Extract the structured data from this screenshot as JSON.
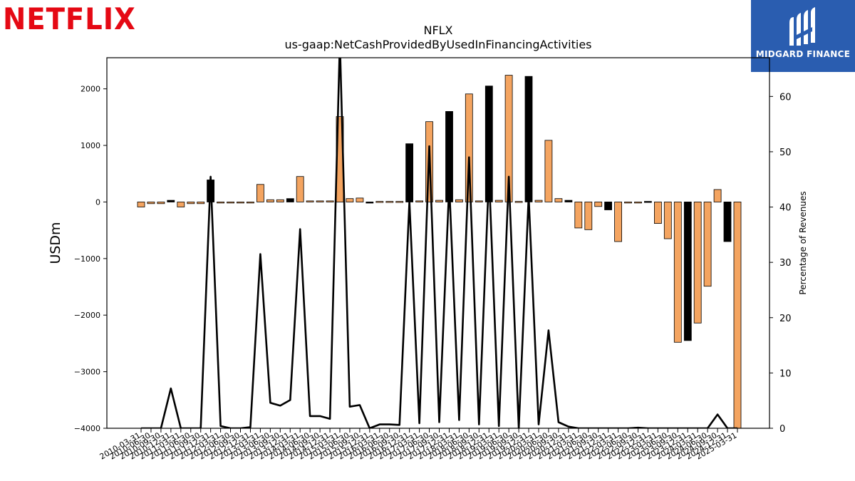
{
  "brand": {
    "company_logo_text": "NETFLIX",
    "publisher_logo_text": "MIDGARD FINANCE"
  },
  "colors": {
    "bar_orange": "#f4a460",
    "bar_black": "#000000",
    "line": "#000000",
    "netflix_red": "#e50914",
    "midgard_blue": "#2a5db0"
  },
  "chart_data": {
    "type": "bar",
    "title": "NFLX",
    "subtitle": "us-gaap:NetCashProvidedByUsedInFinancingActivities",
    "ylabel": "USDm",
    "y2label": "Percentage of Revenues",
    "ylim": [
      -4000,
      2550
    ],
    "y2lim": [
      0,
      67
    ],
    "yticks": [
      2000,
      1000,
      0,
      -1000,
      -2000,
      -3000,
      -4000
    ],
    "y2ticks": [
      60,
      50,
      40,
      30,
      20,
      10,
      0
    ],
    "grid": false,
    "categories": [
      "2010-03-31",
      "2010-06-30",
      "2010-09-30",
      "2010-12-31",
      "2011-03-31",
      "2011-06-30",
      "2011-09-30",
      "2011-12-31",
      "2012-03-31",
      "2012-06-30",
      "2012-09-30",
      "2012-12-31",
      "2013-03-31",
      "2013-06-30",
      "2013-09-30",
      "2013-12-31",
      "2014-03-31",
      "2014-06-30",
      "2014-09-30",
      "2014-12-31",
      "2015-03-31",
      "2015-06-30",
      "2015-09-30",
      "2015-12-31",
      "2016-03-31",
      "2016-06-30",
      "2016-09-30",
      "2016-12-31",
      "2017-03-31",
      "2017-06-30",
      "2017-09-30",
      "2017-12-31",
      "2018-03-31",
      "2018-06-30",
      "2018-09-30",
      "2018-12-31",
      "2019-03-31",
      "2019-06-30",
      "2019-09-30",
      "2019-12-31",
      "2020-03-31",
      "2020-06-30",
      "2020-09-30",
      "2020-12-31",
      "2021-03-31",
      "2021-06-30",
      "2021-09-30",
      "2021-12-31",
      "2022-03-31",
      "2022-06-30",
      "2022-09-30",
      "2022-12-31",
      "2023-03-31",
      "2023-06-30",
      "2023-09-30",
      "2023-12-31",
      "2024-03-31",
      "2024-06-30",
      "2024-09-30",
      "2024-12-31",
      "2025-03-31"
    ],
    "visible_tick_labels": [
      "2010-03-31",
      "2010-06-30",
      "2010-09-30",
      "2010-12-31",
      "2011-03-31",
      "2011-06-30",
      "2011-09-30",
      "2011-12-31",
      "2012-03-31",
      "2012-06-30",
      "2012-09-30",
      "2012-12-31",
      "2013-03-31",
      "2013-06-30",
      "2013-09-30",
      "2013-12-31",
      "2014-03-31",
      "2014-06-30",
      "2014-09-30",
      "2014-12-31",
      "2015-03-31",
      "2015-06-30",
      "2015-09-30",
      "2015-12-31",
      "2016-03-31",
      "2016-06-30",
      "2016-09-30",
      "2016-12-31",
      "2017-03-31",
      "2017-06-30",
      "2017-09-30",
      "2017-12-31",
      "2018-03-31",
      "2018-06-30",
      "2018-09-30",
      "2018-12-31",
      "2019-03-31",
      "2019-06-30",
      "2019-09-30",
      "2019-12-31",
      "2020-03-31",
      "2020-06-30",
      "2020-09-30",
      "2020-12-31",
      "2021-03-31",
      "2021-06-30",
      "2021-09-30",
      "2021-12-31",
      "2022-03-31",
      "2022-06-30",
      "2022-09-30",
      "2022-12-31",
      "2023-03-31",
      "2023-06-30",
      "2023-09-30",
      "2023-12-31",
      "2024-03-31",
      "2024-06-30",
      "2024-09-30",
      "2024-12-31",
      "2025-03-31"
    ],
    "bars": {
      "values": [
        -90,
        -30,
        -30,
        30,
        -90,
        -30,
        -30,
        390,
        0,
        0,
        0,
        0,
        310,
        40,
        40,
        60,
        450,
        20,
        20,
        20,
        1510,
        60,
        70,
        -20,
        10,
        10,
        10,
        1030,
        20,
        1420,
        30,
        1600,
        40,
        1910,
        20,
        2050,
        30,
        2240,
        10,
        2220,
        30,
        1090,
        60,
        30,
        -460,
        -490,
        -80,
        -140,
        -700,
        0,
        0,
        10,
        -380,
        -650,
        -2480,
        -2450,
        -2140,
        -1490,
        220,
        -700,
        -4100
      ],
      "colors": [
        "o",
        "o",
        "o",
        "b",
        "o",
        "o",
        "o",
        "b",
        "o",
        "o",
        "o",
        "o",
        "o",
        "o",
        "o",
        "b",
        "o",
        "o",
        "o",
        "o",
        "o",
        "o",
        "o",
        "b",
        "o",
        "o",
        "o",
        "b",
        "o",
        "o",
        "o",
        "b",
        "o",
        "o",
        "o",
        "b",
        "o",
        "o",
        "o",
        "b",
        "o",
        "o",
        "o",
        "b",
        "o",
        "o",
        "o",
        "b",
        "o",
        "o",
        "o",
        "b",
        "o",
        "o",
        "o",
        "b",
        "o",
        "o",
        "o",
        "b",
        "o"
      ]
    },
    "line": {
      "name": "Percentage of Revenues",
      "values": [
        0,
        0,
        0,
        7.2,
        0,
        0,
        0,
        45.5,
        0.4,
        0,
        0,
        0.2,
        31.5,
        4.6,
        4.1,
        5.1,
        36,
        2.2,
        2.2,
        1.7,
        70,
        3.9,
        4.2,
        0,
        0.7,
        0.7,
        0.6,
        41,
        0.9,
        51,
        1.1,
        44,
        1.5,
        49,
        0.7,
        46,
        0.4,
        45.5,
        0,
        42,
        0.7,
        17.7,
        1.1,
        0.3,
        0,
        0,
        0,
        0,
        0,
        0,
        0.1,
        0,
        0,
        0,
        0,
        0,
        0,
        0,
        2.5,
        0,
        0
      ]
    }
  }
}
